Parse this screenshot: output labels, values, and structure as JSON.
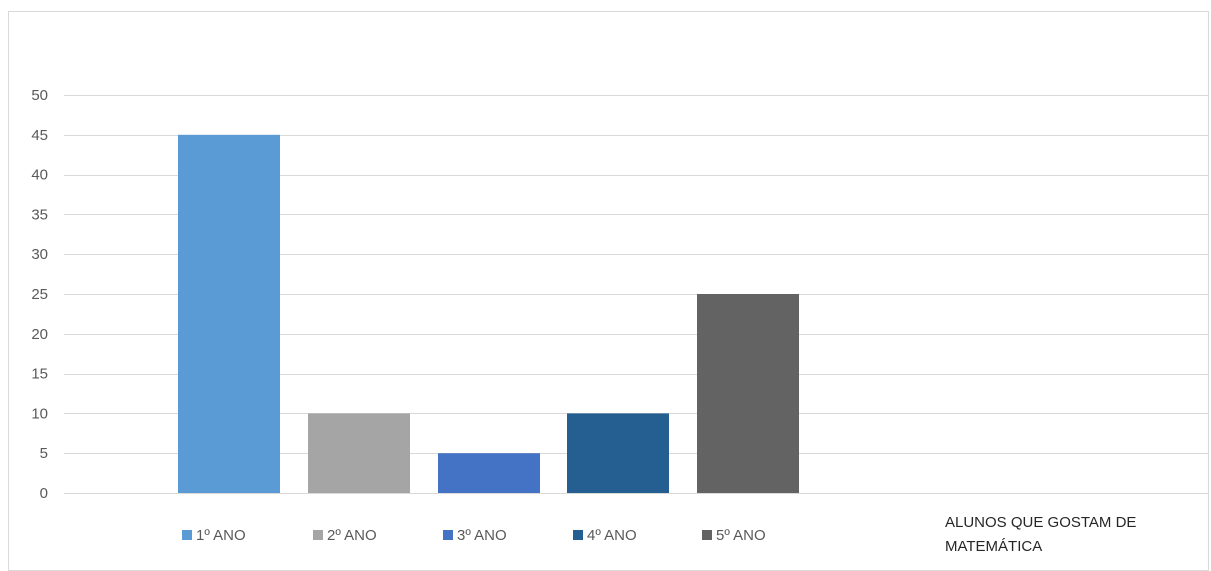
{
  "chart_data": {
    "type": "bar",
    "title": "",
    "xlabel": "",
    "ylabel": "",
    "ylim": [
      0,
      50
    ],
    "yticks": [
      0,
      5,
      10,
      15,
      20,
      25,
      30,
      35,
      40,
      45,
      50
    ],
    "grid": true,
    "legend_position": "bottom",
    "categories": [
      "1º ANO",
      "2º ANO",
      "3º ANO",
      "4º ANO",
      "5º ANO"
    ],
    "values": [
      45,
      10,
      5,
      10,
      25
    ],
    "colors": [
      "#5b9bd5",
      "#a5a5a5",
      "#4472c4",
      "#255e91",
      "#636363"
    ],
    "side_caption": [
      "ALUNOS QUE GOSTAM DE",
      "MATEMÁTICA"
    ]
  }
}
